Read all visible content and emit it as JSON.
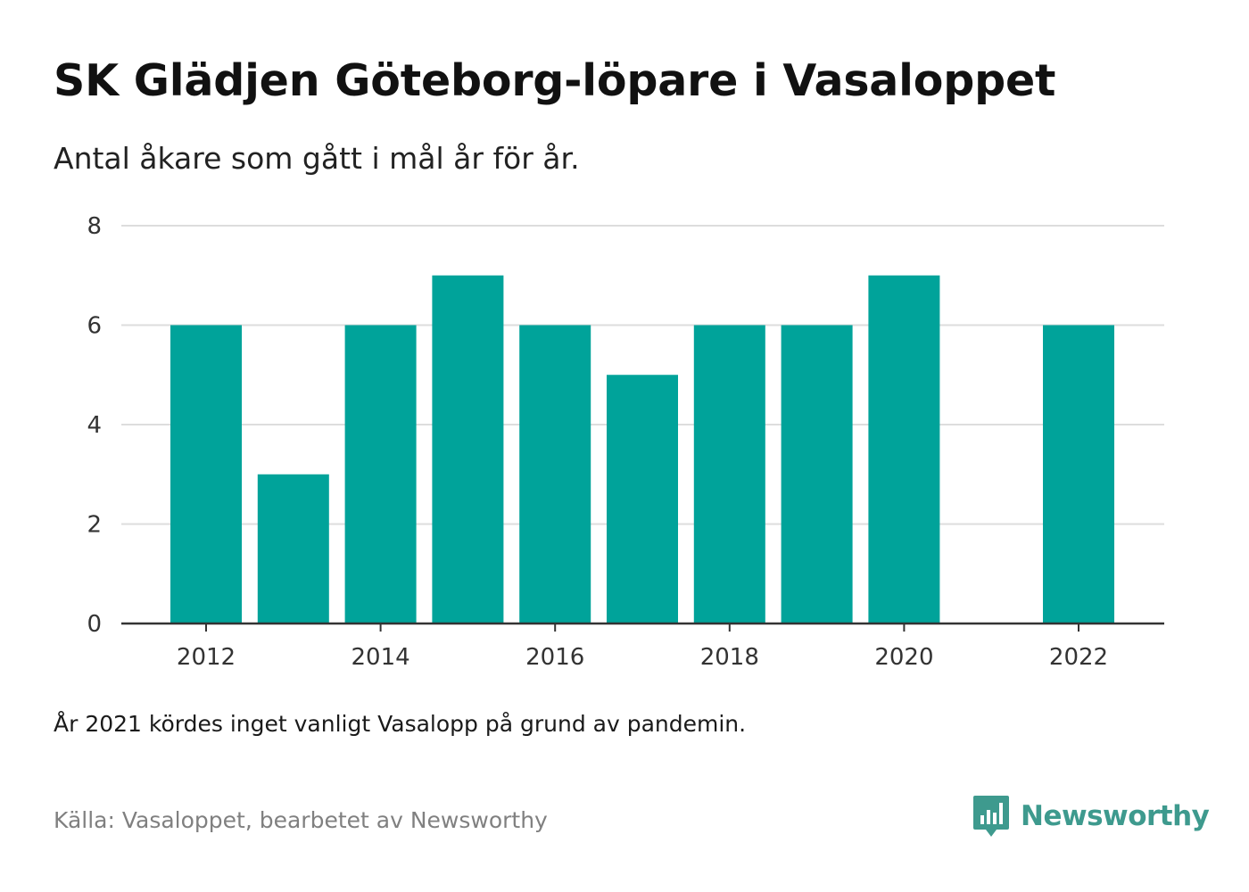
{
  "title": "SK Glädjen Göteborg-löpare i Vasaloppet",
  "subtitle": "Antal åkare som gått i mål år för år.",
  "note": "År 2021 kördes inget vanligt Vasalopp på grund av pandemin.",
  "source": "Källa: Vasaloppet, bearbetet av Newsworthy",
  "logo": {
    "text": "Newsworthy",
    "icon": "newsworthy-logo-icon",
    "color": "#3e9a8e"
  },
  "colors": {
    "bar": "#00a39a",
    "grid": "#dddddd",
    "axis": "#333333"
  },
  "chart_data": {
    "type": "bar",
    "title": "SK Glädjen Göteborg-löpare i Vasaloppet",
    "subtitle": "Antal åkare som gått i mål år för år.",
    "xlabel": "",
    "ylabel": "",
    "categories": [
      2012,
      2013,
      2014,
      2015,
      2016,
      2017,
      2018,
      2019,
      2020,
      2021,
      2022
    ],
    "values": [
      6,
      3,
      6,
      7,
      6,
      5,
      6,
      6,
      7,
      null,
      6
    ],
    "x_tick_labels": [
      "2012",
      "2014",
      "2016",
      "2018",
      "2020",
      "2022"
    ],
    "y_ticks": [
      0,
      2,
      4,
      6,
      8
    ],
    "ylim": [
      0,
      8
    ],
    "grid": true,
    "legend": "none"
  }
}
